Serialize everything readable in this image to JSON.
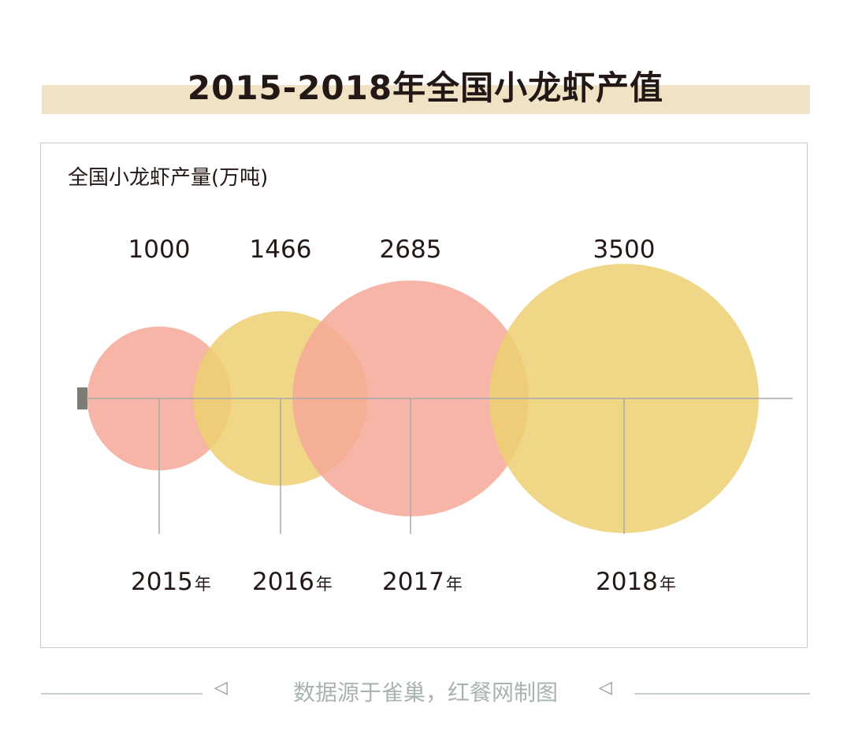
{
  "title": "2015-2018年全国小龙虾产值",
  "unit_label": "全国小龙虾产量(万吨)",
  "footer": {
    "source": "数据源于雀巢，红餐网制图"
  },
  "colors": {
    "salmon": "#f5a898",
    "gold": "#ecd072",
    "axis": "#a9a9a9",
    "band": "#efe2c5"
  },
  "chart_data": {
    "type": "bubble",
    "title": "2015-2018年全国小龙虾产值",
    "ylabel": "全国小龙虾产量(万吨)",
    "categories": [
      "2015",
      "2016",
      "2017",
      "2018"
    ],
    "category_suffix": "年",
    "values": [
      1000,
      1466,
      2685,
      3500
    ],
    "value_labels": [
      "1000",
      "1466",
      "2685",
      "3500"
    ],
    "bubble_colors": [
      "#f5a898",
      "#ecd072",
      "#f5a898",
      "#ecd072"
    ]
  }
}
